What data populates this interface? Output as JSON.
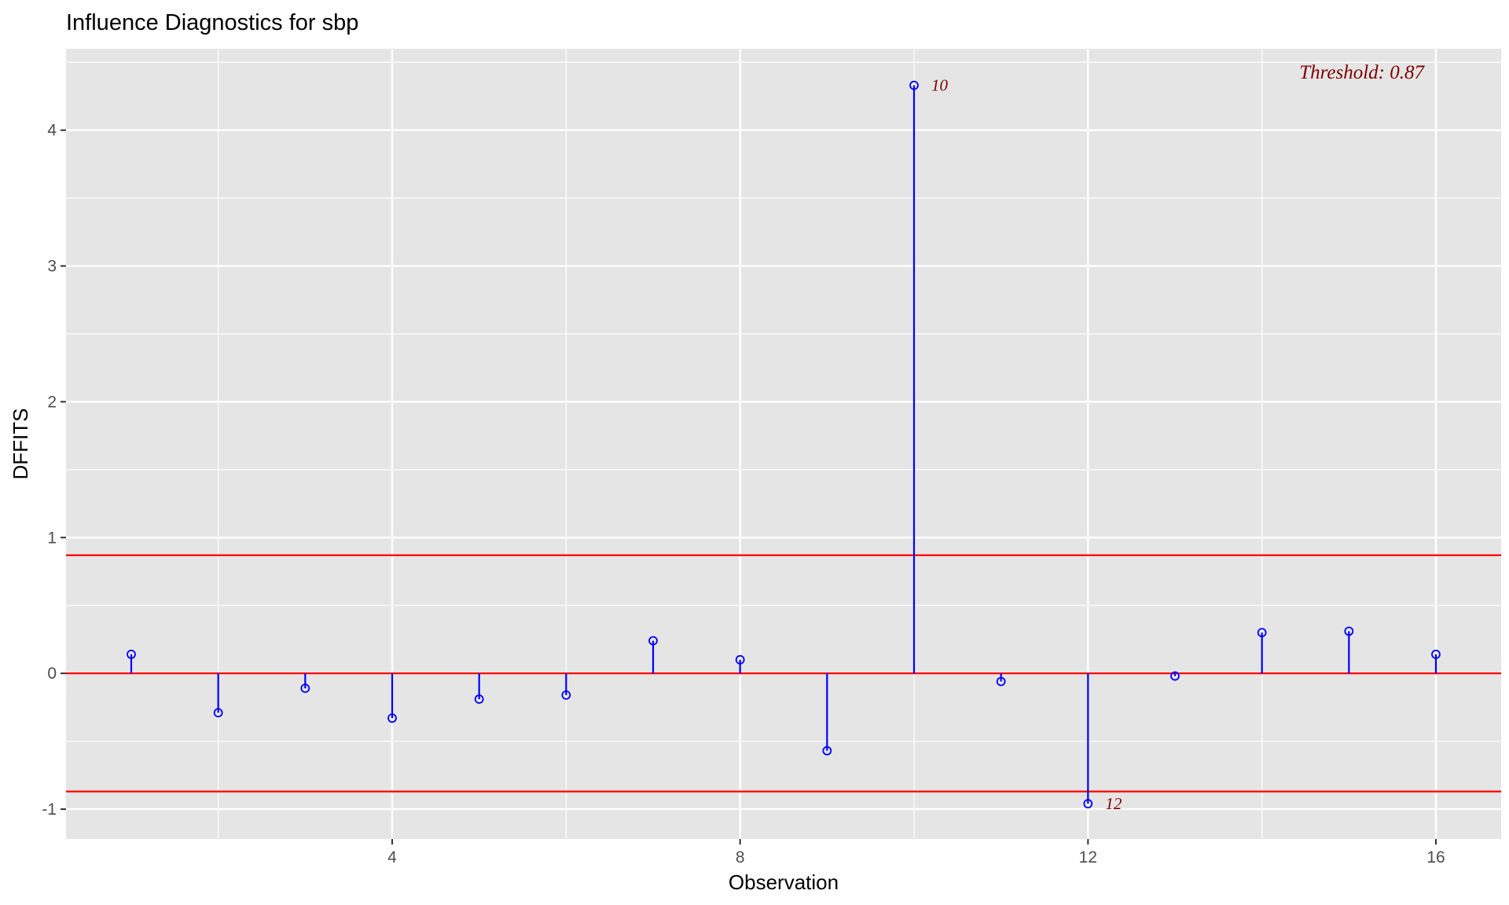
{
  "chart_data": {
    "type": "scatter",
    "subtype": "lollipop",
    "title": "Influence Diagnostics for sbp",
    "xlabel": "Observation",
    "ylabel": "DFFITS",
    "xlim": [
      0.25,
      16.75
    ],
    "ylim": [
      -1.22,
      4.6
    ],
    "x_ticks": [
      4,
      8,
      12,
      16
    ],
    "x_tick_labels": [
      "4",
      "8",
      "12",
      "16"
    ],
    "y_ticks": [
      -1,
      0,
      1,
      2,
      3,
      4
    ],
    "y_tick_labels": [
      "-1",
      "0",
      "1",
      "2",
      "3",
      "4"
    ],
    "grid": true,
    "background": "#e5e5e5",
    "stem_color": "#0000ff",
    "threshold_color": "#ff0000",
    "label_color": "#800000",
    "threshold": 0.87,
    "threshold_label": "Threshold: 0.87",
    "horizontal_lines": [
      0.87,
      0,
      -0.87
    ],
    "series": [
      {
        "x": [
          1,
          2,
          3,
          4,
          5,
          6,
          7,
          8,
          9,
          10,
          11,
          12,
          13,
          14,
          15,
          16
        ],
        "values": [
          0.14,
          -0.29,
          -0.11,
          -0.33,
          -0.19,
          -0.16,
          0.24,
          0.1,
          -0.57,
          4.33,
          -0.06,
          -0.96,
          -0.02,
          0.3,
          0.31,
          0.14
        ]
      }
    ],
    "point_labels": [
      {
        "x": 10,
        "y": 4.33,
        "text": "10"
      },
      {
        "x": 12,
        "y": -0.96,
        "text": "12"
      }
    ]
  }
}
